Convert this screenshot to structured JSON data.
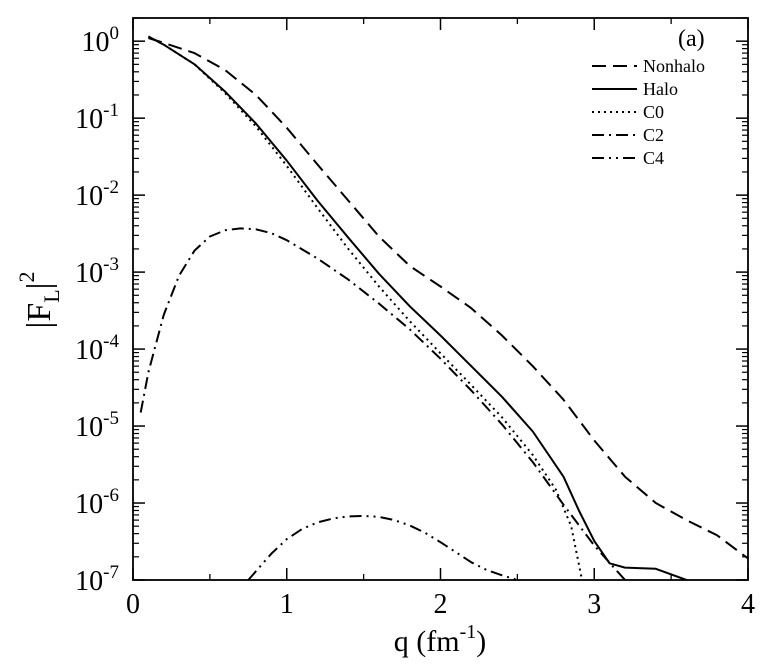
{
  "chart_data": {
    "type": "line",
    "panel_label": "(a)",
    "xlabel_base": "q (fm",
    "xlabel_sup": "-1",
    "xlabel_close": ")",
    "ylabel_base": "|F",
    "ylabel_sub": "L",
    "ylabel_close": "|",
    "ylabel_sup": "2",
    "x_scale": "linear",
    "y_scale": "log",
    "xlim": [
      0,
      4
    ],
    "ylim": [
      1e-07,
      2.0
    ],
    "x_ticks": [
      {
        "value": 0,
        "label": "0"
      },
      {
        "value": 1,
        "label": "1"
      },
      {
        "value": 2,
        "label": "2"
      },
      {
        "value": 3,
        "label": "3"
      },
      {
        "value": 4,
        "label": "4"
      }
    ],
    "y_ticks": [
      {
        "exp": 0,
        "base": "10",
        "sup": "0"
      },
      {
        "exp": -1,
        "base": "10",
        "sup": "-1"
      },
      {
        "exp": -2,
        "base": "10",
        "sup": "-2"
      },
      {
        "exp": -3,
        "base": "10",
        "sup": "-3"
      },
      {
        "exp": -4,
        "base": "10",
        "sup": "-4"
      },
      {
        "exp": -5,
        "base": "10",
        "sup": "-5"
      },
      {
        "exp": -6,
        "base": "10",
        "sup": "-6"
      },
      {
        "exp": -7,
        "base": "10",
        "sup": "-7"
      }
    ],
    "grid": false,
    "legend_position": "top-right",
    "series": [
      {
        "name": "Nonhalo",
        "style": "dashed",
        "color": "#000000",
        "x": [
          0.1,
          0.2,
          0.4,
          0.6,
          0.8,
          1.0,
          1.2,
          1.4,
          1.6,
          1.8,
          2.0,
          2.2,
          2.4,
          2.6,
          2.8,
          3.0,
          3.2,
          3.4,
          3.6,
          3.8,
          4.0
        ],
        "y": [
          1.1,
          0.95,
          0.7,
          0.42,
          0.2,
          0.075,
          0.025,
          0.0085,
          0.0029,
          0.0012,
          0.00065,
          0.00034,
          0.00015,
          6e-05,
          2.2e-05,
          6.5e-06,
          2.2e-06,
          1e-06,
          6e-07,
          3.8e-07,
          1.9e-07
        ]
      },
      {
        "name": "Halo",
        "style": "solid",
        "color": "#000000",
        "x": [
          0.1,
          0.2,
          0.4,
          0.6,
          0.8,
          1.0,
          1.2,
          1.4,
          1.6,
          1.8,
          2.0,
          2.2,
          2.4,
          2.6,
          2.8,
          2.9,
          3.0,
          3.1,
          3.2,
          3.4,
          3.6
        ],
        "y": [
          1.15,
          0.9,
          0.5,
          0.22,
          0.085,
          0.028,
          0.0085,
          0.0028,
          0.00095,
          0.00036,
          0.00015,
          6e-05,
          2.4e-05,
          8.5e-06,
          2.2e-06,
          8e-07,
          3.2e-07,
          1.65e-07,
          1.45e-07,
          1.4e-07,
          1e-07
        ]
      },
      {
        "name": "C0",
        "style": "dotted",
        "color": "#000000",
        "x": [
          0.1,
          0.2,
          0.4,
          0.6,
          0.8,
          1.0,
          1.2,
          1.4,
          1.6,
          1.8,
          2.0,
          2.2,
          2.4,
          2.6,
          2.75,
          2.85,
          2.92
        ],
        "y": [
          1.15,
          0.9,
          0.5,
          0.21,
          0.078,
          0.024,
          0.0068,
          0.002,
          0.00065,
          0.00023,
          8.8e-05,
          3.4e-05,
          1.3e-05,
          4.2e-06,
          1.5e-06,
          5e-07,
          1e-07
        ]
      },
      {
        "name": "C2",
        "style": "dashdot",
        "color": "#000000",
        "x": [
          0.05,
          0.1,
          0.2,
          0.3,
          0.4,
          0.5,
          0.6,
          0.7,
          0.8,
          0.9,
          1.0,
          1.2,
          1.4,
          1.6,
          1.8,
          2.0,
          2.2,
          2.4,
          2.6,
          2.8,
          3.0,
          3.2
        ],
        "y": [
          1.5e-05,
          5e-05,
          0.00028,
          0.0009,
          0.0019,
          0.0029,
          0.0035,
          0.0037,
          0.0036,
          0.0032,
          0.0026,
          0.0015,
          0.0008,
          0.00039,
          0.00018,
          7.5e-05,
          2.9e-05,
          1.05e-05,
          3.4e-06,
          9.5e-07,
          2.8e-07,
          1e-07
        ]
      },
      {
        "name": "C4",
        "style": "dashdotdot",
        "color": "#000000",
        "x": [
          0.75,
          0.9,
          1.0,
          1.1,
          1.2,
          1.3,
          1.4,
          1.5,
          1.6,
          1.7,
          1.8,
          1.9,
          2.0,
          2.1,
          2.2,
          2.3,
          2.4,
          2.5
        ],
        "y": [
          1e-07,
          2.2e-07,
          3.4e-07,
          4.6e-07,
          5.6e-07,
          6.3e-07,
          6.7e-07,
          6.8e-07,
          6.6e-07,
          6e-07,
          5.1e-07,
          4.1e-07,
          3.1e-07,
          2.3e-07,
          1.7e-07,
          1.35e-07,
          1.15e-07,
          1e-07
        ]
      }
    ]
  }
}
